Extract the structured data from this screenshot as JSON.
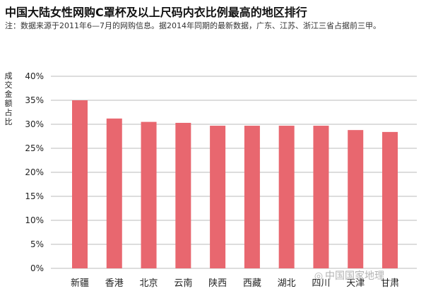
{
  "chart_data": {
    "type": "bar",
    "title": "中国大陆女性网购C罩杯及以上尺码内衣比例最高的地区排行",
    "note": "注：数据来源于2011年6—7月的网购信息。据2014年同期的最新数据，广东、江苏、浙江三省占据前三甲。",
    "ylabel": "成交金额占比",
    "xlabel": "",
    "categories": [
      "新疆",
      "香港",
      "北京",
      "云南",
      "陕西",
      "西藏",
      "湖北",
      "四川",
      "天津",
      "甘肃"
    ],
    "values": [
      35.0,
      31.2,
      30.5,
      30.3,
      29.7,
      29.7,
      29.7,
      29.7,
      28.8,
      28.4
    ],
    "ylim": [
      0,
      40
    ],
    "yticks": [
      "0%",
      "5%",
      "10%",
      "15%",
      "20%",
      "25%",
      "30%",
      "35%",
      "40%"
    ],
    "grid": true,
    "colors": {
      "bar": "#e8676f",
      "grid": "#bbbbbb"
    }
  },
  "watermark": "中国国家地理"
}
